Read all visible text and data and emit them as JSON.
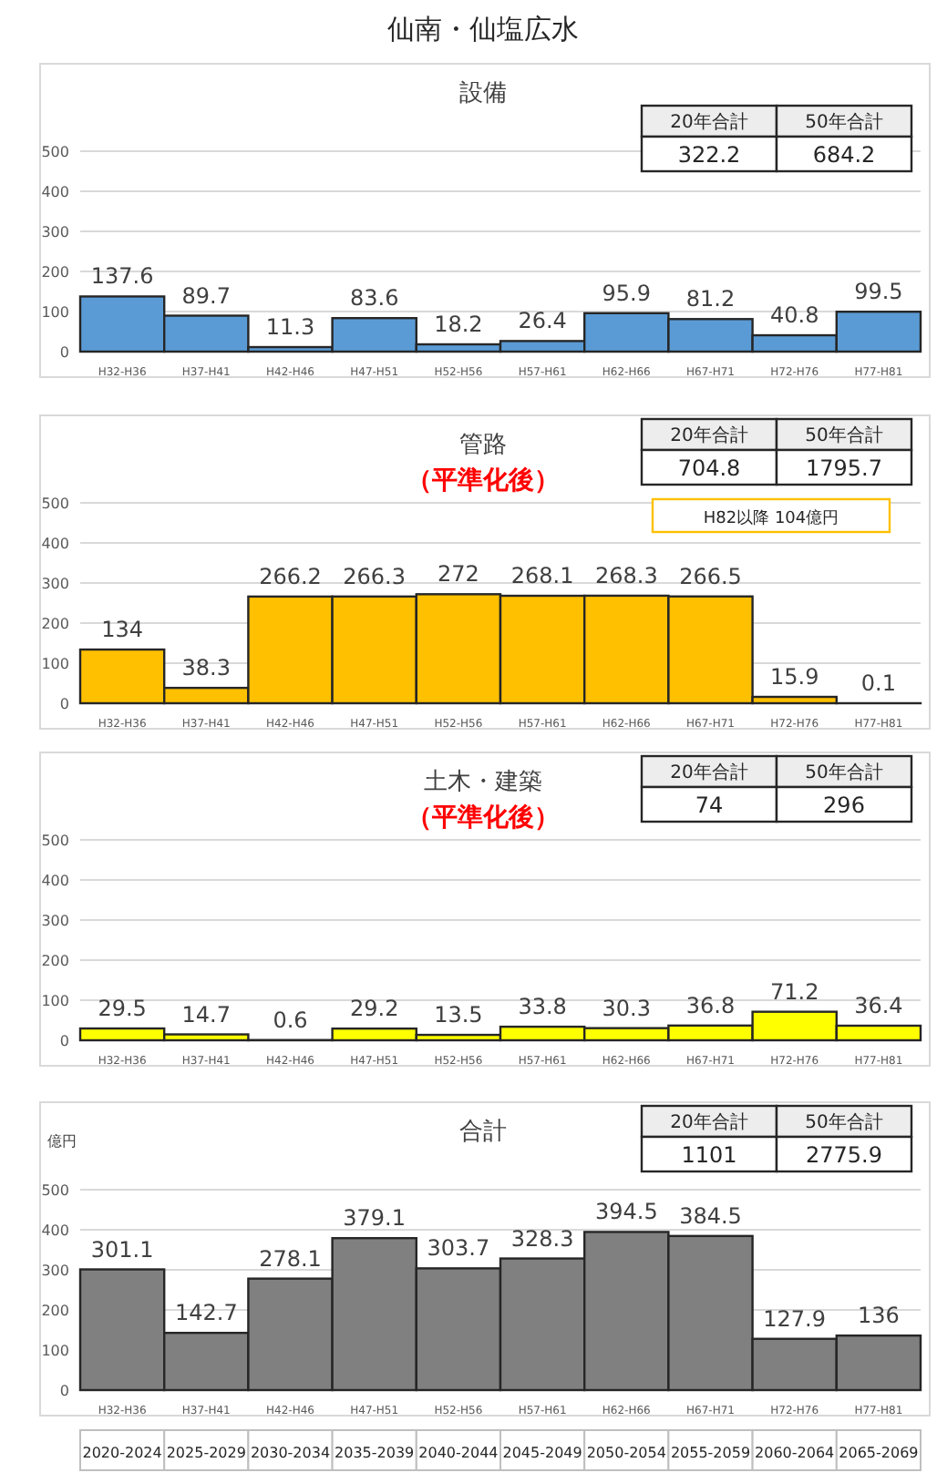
{
  "chart_data": [
    {
      "type": "bar",
      "title": "設備",
      "annotations": [
        "20年合計",
        "50年合計",
        "322.2",
        "684.2",
        "仙南・仙塩広水"
      ],
      "categories": [
        "H32-H36",
        "H37-H41",
        "H42-H46",
        "H47-H51",
        "H52-H56",
        "H57-H61",
        "H62-H66",
        "H67-H71",
        "H72-H76",
        "H77-H81"
      ],
      "values": [
        137.6,
        89.7,
        11.3,
        83.6,
        18.2,
        26.4,
        95.9,
        81.2,
        40.8,
        99.5
      ],
      "color": "#5b9bd5",
      "ylim": [
        0,
        500
      ],
      "yticks": [
        0,
        100,
        200,
        300,
        400,
        500
      ],
      "grid": "y",
      "data_labels": true
    },
    {
      "type": "bar",
      "title": "管路",
      "subtitle": "（平準化後）",
      "annotations": [
        "20年合計",
        "50年合計",
        "704.8",
        "1795.7",
        "H82以降 104億円"
      ],
      "categories": [
        "H32-H36",
        "H37-H41",
        "H42-H46",
        "H47-H51",
        "H52-H56",
        "H57-H61",
        "H62-H66",
        "H67-H71",
        "H72-H76",
        "H77-H81"
      ],
      "values": [
        134,
        38.3,
        266.2,
        266.3,
        272,
        268.1,
        268.3,
        266.5,
        15.9,
        0.1
      ],
      "color": "#ffc000",
      "ylim": [
        0,
        500
      ],
      "yticks": [
        0,
        100,
        200,
        300,
        400,
        500
      ],
      "grid": "y",
      "data_labels": true
    },
    {
      "type": "bar",
      "title": "土木・建築",
      "subtitle": "（平準化後）",
      "annotations": [
        "20年合計",
        "50年合計",
        "74",
        "296"
      ],
      "categories": [
        "H32-H36",
        "H37-H41",
        "H42-H46",
        "H47-H51",
        "H52-H56",
        "H57-H61",
        "H62-H66",
        "H67-H71",
        "H72-H76",
        "H77-H81"
      ],
      "values": [
        29.5,
        14.7,
        0.6,
        29.2,
        13.5,
        33.8,
        30.3,
        36.8,
        71.2,
        36.4
      ],
      "color": "#ffff00",
      "ylim": [
        0,
        500
      ],
      "yticks": [
        0,
        100,
        200,
        300,
        400,
        500
      ],
      "grid": "y",
      "data_labels": true
    },
    {
      "type": "bar",
      "title": "合計",
      "ylabel": "億円",
      "annotations": [
        "20年合計",
        "50年合計",
        "1101",
        "2775.9",
        "2020-2024",
        "2025-2029",
        "2030-2034",
        "2035-2039",
        "2040-2044",
        "2045-2049",
        "2050-2054",
        "2055-2059",
        "2060-2064",
        "2065-2069"
      ],
      "categories": [
        "H32-H36",
        "H37-H41",
        "H42-H46",
        "H47-H51",
        "H52-H56",
        "H57-H61",
        "H62-H66",
        "H67-H71",
        "H72-H76",
        "H77-H81"
      ],
      "values": [
        301.1,
        142.7,
        278.1,
        379.1,
        303.7,
        328.3,
        394.5,
        384.5,
        127.9,
        136
      ],
      "color": "#808080",
      "ylim": [
        0,
        500
      ],
      "yticks": [
        0,
        100,
        200,
        300,
        400,
        500
      ],
      "grid": "y",
      "data_labels": true
    }
  ]
}
